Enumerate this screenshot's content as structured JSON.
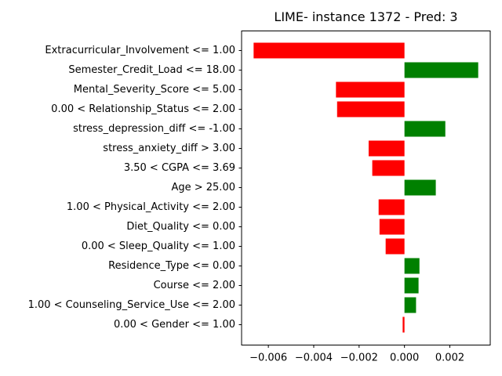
{
  "chart_data": {
    "type": "bar",
    "orientation": "horizontal",
    "title": "LIME- instance 1372 - Pred: 3",
    "xlabel": "",
    "ylabel": "",
    "categories": [
      "Extracurricular_Involvement <= 1.00",
      "Semester_Credit_Load <= 18.00",
      "Mental_Severity_Score <= 5.00",
      "0.00 < Relationship_Status <= 2.00",
      "stress_depression_diff <= -1.00",
      "stress_anxiety_diff > 3.00",
      "3.50 < CGPA <= 3.69",
      "Age > 25.00",
      "1.00 < Physical_Activity <= 2.00",
      "Diet_Quality <= 0.00",
      "0.00 < Sleep_Quality <= 1.00",
      "Residence_Type <= 0.00",
      "Course <= 2.00",
      "1.00 < Counseling_Service_Use <= 2.00",
      "0.00 < Gender <= 1.00"
    ],
    "values": [
      -0.00665,
      0.00325,
      -0.00302,
      -0.00297,
      0.0018,
      -0.00158,
      -0.00142,
      0.00138,
      -0.00114,
      -0.0011,
      -0.00083,
      0.00066,
      0.00062,
      0.00051,
      -8e-05
    ],
    "xlim": [
      -0.00718,
      0.00378
    ],
    "xticks": [
      -0.006,
      -0.004,
      -0.002,
      0.0,
      0.002
    ],
    "xtick_labels": [
      "−0.006",
      "−0.004",
      "−0.002",
      "0.000",
      "0.002"
    ],
    "colors": {
      "positive": "#008000",
      "negative": "#ff0000",
      "axis": "#000000"
    },
    "grid": false,
    "legend": "none"
  }
}
